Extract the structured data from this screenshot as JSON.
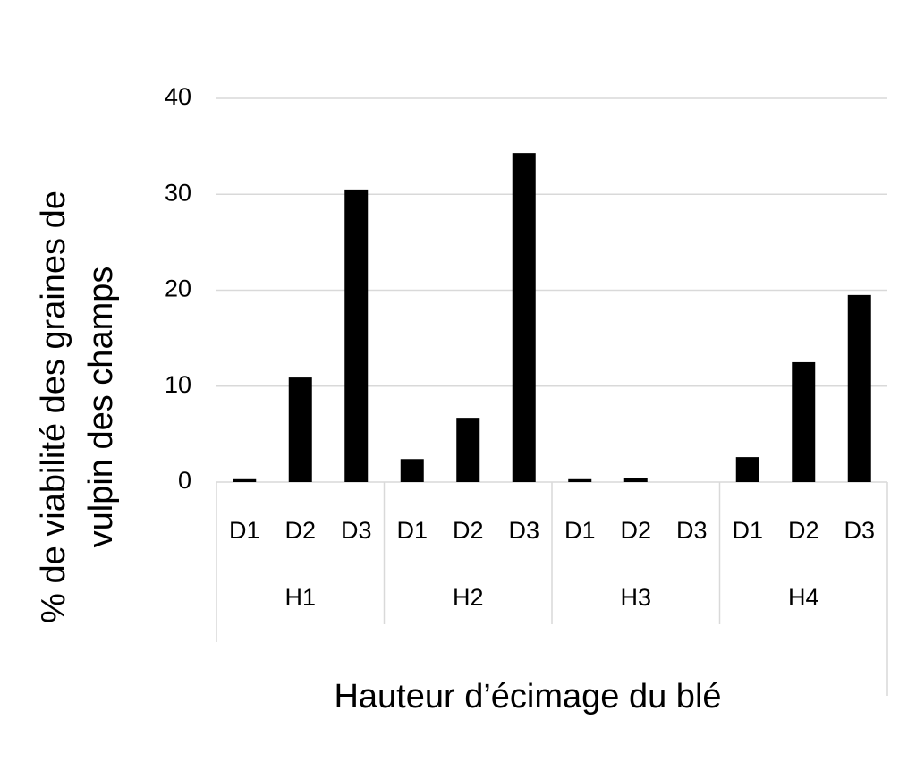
{
  "chart_data": {
    "type": "bar",
    "categories": [
      "D1",
      "D2",
      "D3",
      "D1",
      "D2",
      "D3",
      "D1",
      "D2",
      "D3",
      "D1",
      "D2",
      "D3"
    ],
    "groups": [
      "H1",
      "H2",
      "H3",
      "H4"
    ],
    "values": [
      0.3,
      10.9,
      30.5,
      2.4,
      6.7,
      34.3,
      0.3,
      0.4,
      0,
      2.6,
      12.5,
      19.5
    ],
    "color": "#000000",
    "ylim": [
      0,
      40
    ],
    "yticks": [
      0,
      10,
      20,
      30,
      40
    ],
    "grid": true,
    "xlabel": "Hauteur d’écimage du blé",
    "ylabel": [
      "% de viabilité des graines de",
      "vulpin des champs"
    ]
  }
}
